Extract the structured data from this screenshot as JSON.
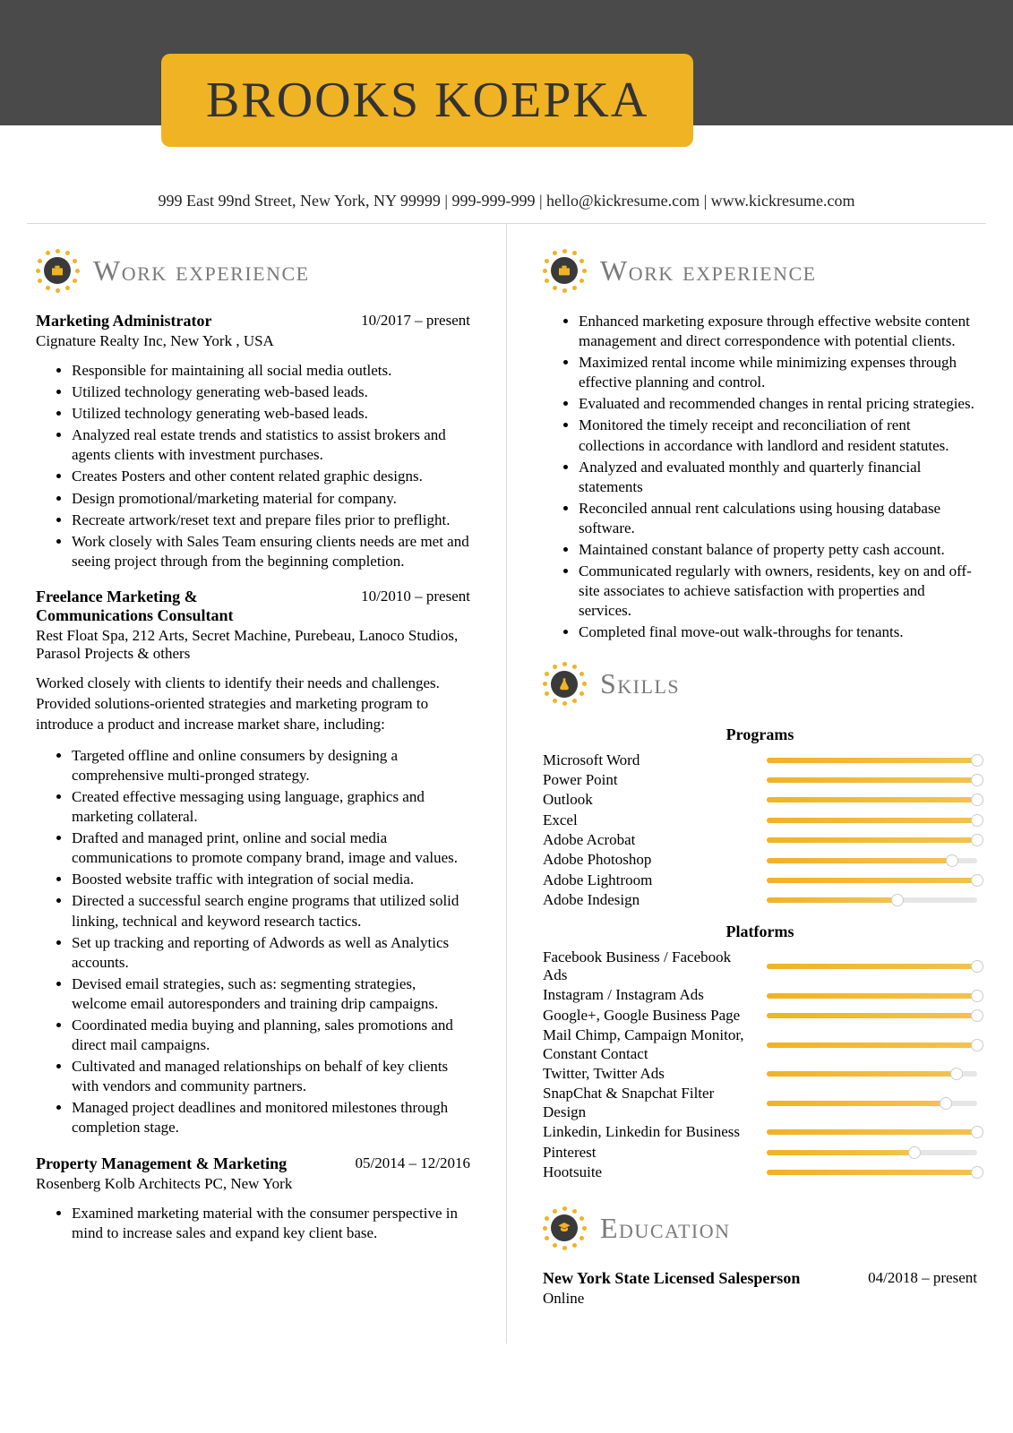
{
  "colors": {
    "accent": "#f0b323",
    "header_bg": "#4a4a4a",
    "heading_gray": "#7a7a7a",
    "divider": "#d9d9d9",
    "bar_track": "#e6e6e6",
    "bar_fill_start": "#f0b323",
    "bar_fill_end": "#f3c24f"
  },
  "name": "BROOKS KOEPKA",
  "contact": "999 East 99nd Street, New York, NY 99999 | 999-999-999 | hello@kickresume.com | www.kickresume.com",
  "sections": {
    "work_left": "Work experience",
    "work_right": "Work experience",
    "skills": "Skills",
    "education": "Education"
  },
  "jobs": [
    {
      "title": "Marketing Administrator",
      "dates": "10/2017 – present",
      "company": "Cignature Realty Inc, New York , USA",
      "bullets": [
        "Responsible for maintaining all social media outlets.",
        "Utilized technology generating web-based leads.",
        "Utilized technology generating web-based leads.",
        "Analyzed real estate trends and statistics to assist brokers and agents clients with investment purchases.",
        "Creates Posters and other content related graphic designs.",
        "Design promotional/marketing material for company.",
        "Recreate artwork/reset text and prepare files prior to preflight.",
        "Work closely with Sales Team ensuring clients needs are met and seeing project through from the beginning completion."
      ]
    },
    {
      "title": "Freelance Marketing & Communications Consultant",
      "dates": "10/2010 – present",
      "company": "Rest Float Spa, 212 Arts, Secret Machine, Purebeau, Lanoco Studios, Parasol Projects & others",
      "desc": "Worked closely with clients to identify their needs and challenges. Provided solutions-oriented strategies and marketing program to introduce a product and increase market share, including:",
      "bullets": [
        "Targeted offline and online consumers by designing a comprehensive multi-pronged strategy.",
        "Created effective messaging using language, graphics and marketing collateral.",
        "Drafted and managed print, online and social media communications to promote company brand, image and values.",
        "Boosted website traffic with integration of social media.",
        "Directed a successful search engine programs that utilized solid linking, technical and keyword research tactics.",
        "Set up tracking and reporting of Adwords as well as Analytics accounts.",
        "Devised email strategies, such as: segmenting strategies, welcome email autoresponders and training drip campaigns.",
        "Coordinated media buying and planning, sales promotions and direct mail campaigns.",
        "Cultivated and managed relationships on behalf of key clients with vendors and community partners.",
        "Managed project deadlines and monitored milestones through completion stage."
      ]
    },
    {
      "title": "Property Management & Marketing",
      "dates": "05/2014 – 12/2016",
      "company": "Rosenberg Kolb Architects PC, New York",
      "bullets": [
        "Examined marketing material with the consumer perspective in mind to increase sales and expand key client base."
      ]
    }
  ],
  "right_bullets": [
    "Enhanced marketing exposure through effective website content management and direct correspondence with potential clients.",
    "Maximized rental income while minimizing expenses through effective planning and control.",
    "Evaluated and recommended changes in rental pricing strategies.",
    "Monitored the timely receipt and reconciliation of rent collections in accordance with landlord and resident statutes.",
    "Analyzed and evaluated monthly and quarterly financial statements",
    "Reconciled annual rent calculations using housing database software.",
    "Maintained constant balance of property petty cash account.",
    "Communicated regularly with owners, residents, key on and off-site associates to achieve satisfaction with properties and services.",
    "Completed final move-out walk-throughs for tenants."
  ],
  "skills": {
    "programs_label": "Programs",
    "platforms_label": "Platforms",
    "programs": [
      {
        "name": "Microsoft Word",
        "level": 100
      },
      {
        "name": "Power Point",
        "level": 100
      },
      {
        "name": "Outlook",
        "level": 100
      },
      {
        "name": "Excel",
        "level": 100
      },
      {
        "name": "Adobe Acrobat",
        "level": 100
      },
      {
        "name": "Adobe Photoshop",
        "level": 88
      },
      {
        "name": "Adobe Lightroom",
        "level": 100
      },
      {
        "name": "Adobe Indesign",
        "level": 62
      }
    ],
    "platforms": [
      {
        "name": "Facebook Business / Facebook Ads",
        "level": 100
      },
      {
        "name": "Instagram / Instagram Ads",
        "level": 100
      },
      {
        "name": "Google+, Google Business Page",
        "level": 100
      },
      {
        "name": "Mail Chimp, Campaign Monitor, Constant Contact",
        "level": 100
      },
      {
        "name": "Twitter, Twitter Ads",
        "level": 90
      },
      {
        "name": "SnapChat & Snapchat Filter Design",
        "level": 85
      },
      {
        "name": "Linkedin, Linkedin for Business",
        "level": 100
      },
      {
        "name": "Pinterest",
        "level": 70
      },
      {
        "name": "Hootsuite",
        "level": 100
      }
    ]
  },
  "education": {
    "title": "New York State Licensed Salesperson",
    "dates": "04/2018 – present",
    "sub": "Online"
  }
}
